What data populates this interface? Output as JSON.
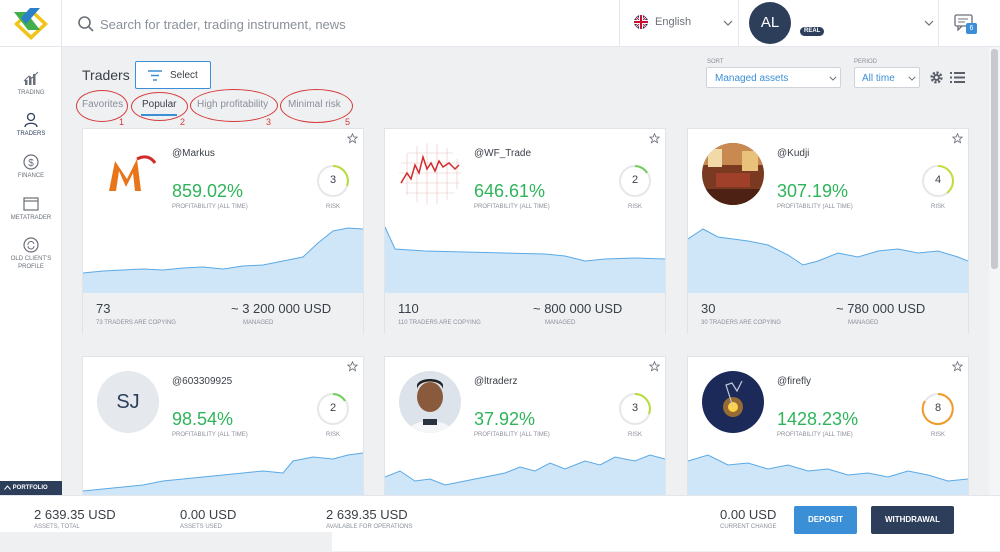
{
  "search": {
    "placeholder": "Search for trader, trading instrument, news"
  },
  "language": {
    "label": "English"
  },
  "account": {
    "initials": "AL",
    "badge": "REAL"
  },
  "chat": {
    "count": "6"
  },
  "sidebar": {
    "items": [
      {
        "label": "TRADING",
        "icon": "chart-icon"
      },
      {
        "label": "TRADERS",
        "icon": "trader-icon"
      },
      {
        "label": "FINANCE",
        "icon": "dollar-icon"
      },
      {
        "label": "METATRADER",
        "icon": "window-icon"
      },
      {
        "label": "OLD CLIENT'S",
        "label2": "PROFILE",
        "icon": "refresh-icon"
      }
    ],
    "portfolio_label": "PORTFOLIO"
  },
  "header": {
    "title": "Traders",
    "select_label": "Select",
    "sort_label": "SORT",
    "sort_value": "Managed assets",
    "period_label": "PERIOD",
    "period_value": "All time"
  },
  "tabs": [
    {
      "label": "Favorites",
      "annotation": "1"
    },
    {
      "label": "Popular",
      "annotation": "2",
      "active": true
    },
    {
      "label": "High profitability",
      "annotation": "3"
    },
    {
      "label": "Minimal risk",
      "annotation": "5"
    }
  ],
  "cards": [
    {
      "name": "@Markus",
      "profit": "859.02%",
      "profit_label": "PROFITABILITY (ALL TIME)",
      "risk": "3",
      "risk_label": "RISK",
      "copiers": "73",
      "copiers_label": "73 TRADERS ARE COPYING",
      "managed": "~ 3 200 000 USD",
      "managed_label": "MANAGED"
    },
    {
      "name": "@WF_Trade",
      "profit": "646.61%",
      "profit_label": "PROFITABILITY (ALL TIME)",
      "risk": "2",
      "risk_label": "RISK",
      "copiers": "110",
      "copiers_label": "110 TRADERS ARE COPYING",
      "managed": "~ 800 000 USD",
      "managed_label": "MANAGED"
    },
    {
      "name": "@Kudji",
      "profit": "307.19%",
      "profit_label": "PROFITABILITY (ALL TIME)",
      "risk": "4",
      "risk_label": "RISK",
      "copiers": "30",
      "copiers_label": "30 TRADERS ARE COPYING",
      "managed": "~ 780 000 USD",
      "managed_label": "MANAGED"
    },
    {
      "name": "@603309925",
      "initials": "SJ",
      "profit": "98.54%",
      "profit_label": "PROFITABILITY (ALL TIME)",
      "risk": "2",
      "risk_label": "RISK"
    },
    {
      "name": "@ltraderz",
      "profit": "37.92%",
      "profit_label": "PROFITABILITY (ALL TIME)",
      "risk": "3",
      "risk_label": "RISK"
    },
    {
      "name": "@firefly",
      "profit": "1428.23%",
      "profit_label": "PROFITABILITY (ALL TIME)",
      "risk": "8",
      "risk_label": "RISK"
    }
  ],
  "bottom": {
    "assets_total": "2 639.35 USD",
    "assets_total_label": "ASSETS, TOTAL",
    "assets_used": "0.00 USD",
    "assets_used_label": "ASSETS USED",
    "available": "2 639.35 USD",
    "available_label": "AVAILABLE FOR OPERATIONS",
    "current_change": "0.00 USD",
    "current_change_label": "CURRENT CHANGE",
    "deposit_label": "DEPOSIT",
    "withdrawal_label": "WITHDRAWAL"
  },
  "colors": {
    "accent": "#3a8fd6",
    "navy": "#2d3e5b",
    "profit": "#2fb45a",
    "annotation": "#d63a3a"
  }
}
